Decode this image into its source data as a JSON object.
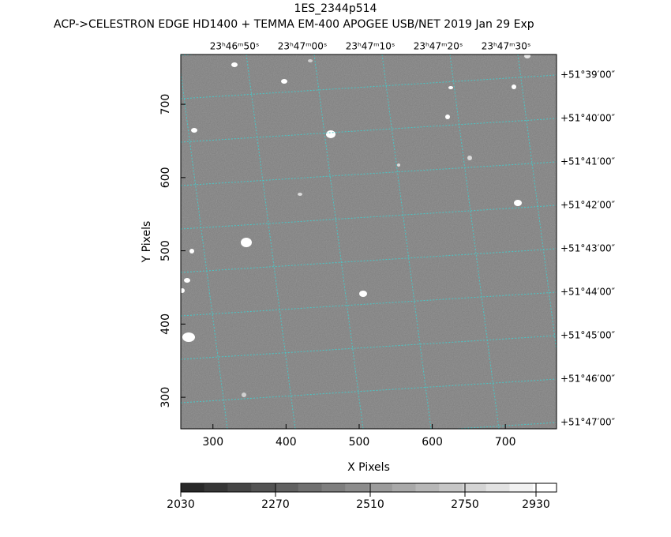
{
  "chart_data": {
    "type": "image",
    "title": "1ES_2344p514",
    "subtitle": "ACP->CELESTRON EDGE HD1400 + TEMMA EM-400 APOGEE USB/NET   2019 Jan 29    Exp",
    "x_label": "X Pixels",
    "y_label": "Y Pixels",
    "xlim": [
      256,
      770
    ],
    "xticks": [
      300,
      400,
      500,
      600,
      700
    ],
    "ylim": [
      257,
      768
    ],
    "yticks": [
      300,
      400,
      500,
      600,
      700
    ],
    "ra_labels": [
      "23ʰ46ᵐ50ˢ",
      "23ʰ47ᵐ00ˢ",
      "23ʰ47ᵐ10ˢ",
      "23ʰ47ᵐ20ˢ",
      "23ʰ47ᵐ30ˢ"
    ],
    "dec_labels": [
      "+51°39′00″",
      "+51°40′00″",
      "+51°41′00″",
      "+51°42′00″",
      "+51°43′00″",
      "+51°44′00″",
      "+51°45′00″",
      "+51°46′00″",
      "+51°47′00″"
    ],
    "grid_color": "#49c6c6",
    "colorbar": {
      "lim": [
        2030,
        2982
      ],
      "ticks": [
        2030,
        2270,
        2510,
        2750,
        2930
      ]
    }
  }
}
